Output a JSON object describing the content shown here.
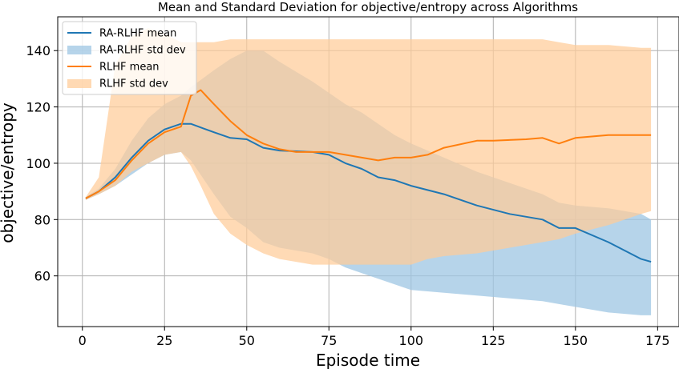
{
  "chart_data": {
    "type": "line",
    "title": "Mean and Standard Deviation for objective/entropy across Algorithms",
    "xlabel": "Episode time",
    "ylabel": "objective/entropy",
    "xlim": [
      -7.5,
      181.5
    ],
    "ylim": [
      42,
      152
    ],
    "xticks": [
      "0",
      "25",
      "50",
      "75",
      "100",
      "125",
      "150",
      "175"
    ],
    "xtick_values": [
      0,
      25,
      50,
      75,
      100,
      125,
      150,
      175
    ],
    "yticks": [
      "60",
      "80",
      "100",
      "120",
      "140"
    ],
    "ytick_values": [
      60,
      80,
      100,
      120,
      140
    ],
    "grid": true,
    "legend_position": "top-left",
    "legend": [
      "RA-RLHF mean",
      "RA-RLHF std dev",
      "RLHF mean",
      "RLHF std dev"
    ],
    "series": [
      {
        "name": "RA-RLHF mean",
        "color": "#1f77b4",
        "band_color": "#9ec5e3",
        "x": [
          1,
          5,
          10,
          15,
          20,
          25,
          30,
          33,
          40,
          45,
          50,
          55,
          60,
          70,
          75,
          80,
          85,
          90,
          95,
          100,
          110,
          120,
          130,
          140,
          145,
          150,
          160,
          170,
          173
        ],
        "mean": [
          87.5,
          90,
          95,
          102,
          108,
          112,
          114,
          114,
          111,
          109,
          108.5,
          105.5,
          104.5,
          104,
          103,
          100,
          98,
          95,
          94,
          92,
          89,
          85,
          82,
          80,
          77,
          77,
          72,
          66,
          65
        ],
        "upper": [
          88,
          91,
          98,
          108,
          116,
          121,
          124,
          127,
          133,
          137,
          140,
          140,
          136,
          129,
          125,
          121,
          118,
          114,
          110,
          107,
          102,
          97,
          93,
          89,
          86,
          85,
          84,
          82,
          80
        ],
        "lower": [
          87,
          89,
          92,
          96,
          100,
          103,
          104,
          101,
          89,
          81,
          77,
          72,
          70,
          68,
          66,
          63,
          61,
          59,
          57,
          55,
          54,
          53,
          52,
          51,
          50,
          49,
          47,
          46,
          46
        ]
      },
      {
        "name": "RLHF mean",
        "color": "#ff7f0e",
        "band_color": "#ffcc99",
        "x": [
          1,
          5,
          10,
          15,
          20,
          25,
          30,
          33,
          36,
          40,
          45,
          50,
          55,
          60,
          65,
          70,
          75,
          80,
          85,
          90,
          95,
          100,
          105,
          110,
          120,
          125,
          135,
          140,
          145,
          150,
          160,
          170,
          173
        ],
        "mean": [
          87.5,
          90,
          94,
          101,
          107,
          111,
          113,
          124,
          126,
          121,
          115,
          110,
          107,
          105,
          104,
          104,
          104,
          103,
          102,
          101,
          102,
          102,
          103,
          105.5,
          108,
          108,
          108.5,
          109,
          107,
          109,
          110,
          110,
          110
        ],
        "upper": [
          88,
          95,
          135,
          145,
          148,
          146,
          143,
          143,
          143,
          143,
          144,
          144,
          144,
          144,
          144,
          144,
          144,
          144,
          144,
          144,
          144,
          144,
          144,
          144,
          144,
          144,
          144,
          144,
          143,
          142,
          142,
          141,
          141
        ],
        "lower": [
          87,
          89,
          92,
          97,
          100,
          103,
          104,
          99,
          92,
          82,
          75,
          71,
          68,
          66,
          65,
          64,
          64,
          64,
          64,
          64,
          64,
          64,
          66,
          67,
          68,
          69,
          71,
          72,
          73,
          75,
          78,
          82,
          83
        ]
      }
    ]
  }
}
